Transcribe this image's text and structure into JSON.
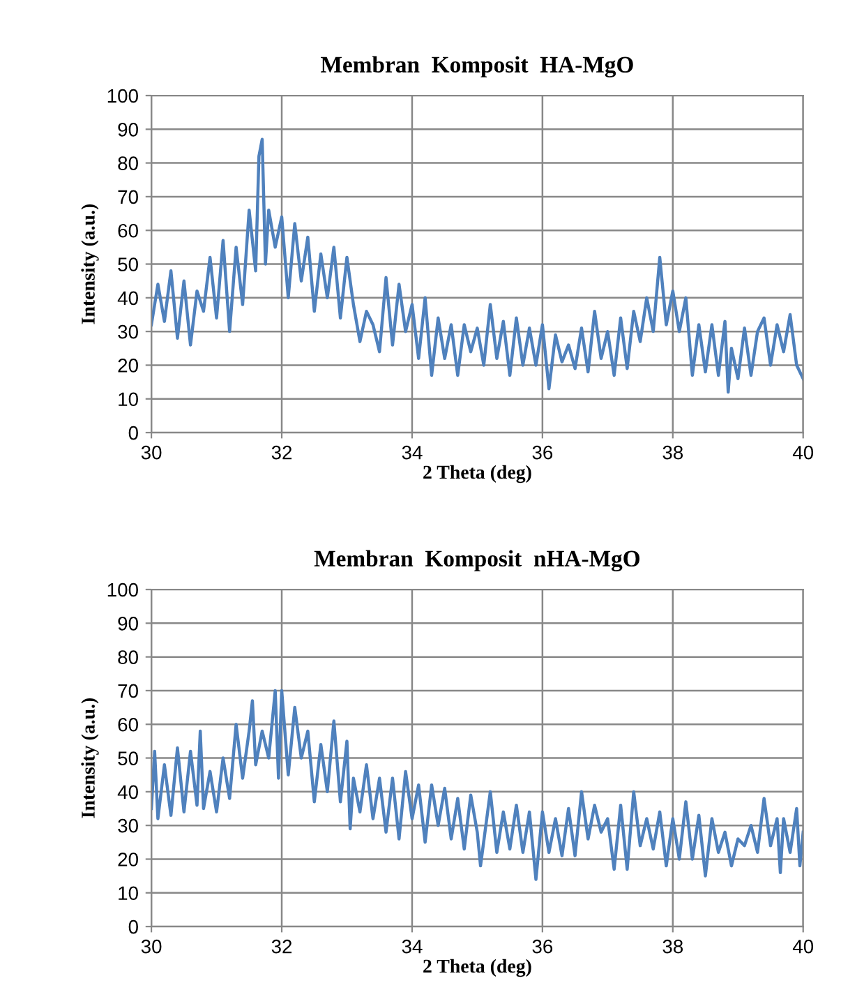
{
  "chart_data": [
    {
      "type": "line",
      "title": "Membran  Komposit  HA-MgO",
      "xlabel": "2 Theta (deg)",
      "ylabel": "Intensity (a.u.)",
      "xlim": [
        30,
        40
      ],
      "xticks": [
        30,
        32,
        34,
        36,
        38,
        40
      ],
      "ylim": [
        0,
        100
      ],
      "yticks": [
        0,
        10,
        20,
        30,
        40,
        50,
        60,
        70,
        80,
        90,
        100
      ],
      "grid": true,
      "marker": "none",
      "line_style": "solid",
      "series": [
        {
          "color": "#4f81bd",
          "x": [
            30.0,
            30.1,
            30.2,
            30.3,
            30.4,
            30.5,
            30.6,
            30.7,
            30.8,
            30.9,
            31.0,
            31.1,
            31.2,
            31.3,
            31.4,
            31.5,
            31.6,
            31.65,
            31.7,
            31.75,
            31.8,
            31.9,
            32.0,
            32.1,
            32.2,
            32.3,
            32.4,
            32.5,
            32.6,
            32.7,
            32.8,
            32.9,
            33.0,
            33.1,
            33.2,
            33.3,
            33.4,
            33.5,
            33.6,
            33.7,
            33.8,
            33.9,
            34.0,
            34.1,
            34.2,
            34.3,
            34.4,
            34.5,
            34.6,
            34.7,
            34.8,
            34.9,
            35.0,
            35.1,
            35.2,
            35.3,
            35.4,
            35.5,
            35.6,
            35.7,
            35.8,
            35.9,
            36.0,
            36.1,
            36.2,
            36.3,
            36.4,
            36.5,
            36.6,
            36.7,
            36.8,
            36.9,
            37.0,
            37.1,
            37.2,
            37.3,
            37.4,
            37.5,
            37.6,
            37.7,
            37.8,
            37.9,
            38.0,
            38.1,
            38.2,
            38.3,
            38.4,
            38.5,
            38.6,
            38.7,
            38.8,
            38.85,
            38.9,
            39.0,
            39.1,
            39.2,
            39.3,
            39.4,
            39.5,
            39.6,
            39.7,
            39.8,
            39.9,
            40.0
          ],
          "values": [
            32,
            44,
            33,
            48,
            28,
            45,
            26,
            42,
            36,
            52,
            34,
            57,
            30,
            55,
            38,
            66,
            48,
            82,
            87,
            50,
            66,
            55,
            64,
            40,
            62,
            45,
            58,
            36,
            53,
            40,
            55,
            34,
            52,
            38,
            27,
            36,
            32,
            24,
            46,
            26,
            44,
            30,
            38,
            22,
            40,
            17,
            34,
            22,
            32,
            17,
            32,
            24,
            31,
            20,
            38,
            22,
            33,
            17,
            34,
            20,
            31,
            20,
            32,
            13,
            29,
            21,
            26,
            19,
            31,
            18,
            36,
            22,
            30,
            17,
            34,
            19,
            36,
            27,
            40,
            30,
            52,
            32,
            42,
            30,
            40,
            17,
            32,
            18,
            32,
            17,
            33,
            12,
            25,
            16,
            31,
            17,
            30,
            34,
            20,
            32,
            24,
            35,
            20,
            16
          ]
        }
      ]
    },
    {
      "type": "line",
      "title": "Membran  Komposit  nHA-MgO",
      "xlabel": "2 Theta (deg)",
      "ylabel": "Intensity (a.u.)",
      "xlim": [
        30,
        40
      ],
      "xticks": [
        30,
        32,
        34,
        36,
        38,
        40
      ],
      "ylim": [
        0,
        100
      ],
      "yticks": [
        0,
        10,
        20,
        30,
        40,
        50,
        60,
        70,
        80,
        90,
        100
      ],
      "grid": true,
      "marker": "none",
      "line_style": "solid",
      "series": [
        {
          "color": "#4f81bd",
          "x": [
            30.0,
            30.05,
            30.1,
            30.2,
            30.3,
            30.4,
            30.5,
            30.6,
            30.7,
            30.75,
            30.8,
            30.9,
            31.0,
            31.1,
            31.2,
            31.3,
            31.4,
            31.5,
            31.55,
            31.6,
            31.7,
            31.8,
            31.9,
            31.95,
            32.0,
            32.1,
            32.2,
            32.3,
            32.4,
            32.5,
            32.6,
            32.7,
            32.8,
            32.9,
            33.0,
            33.05,
            33.1,
            33.2,
            33.3,
            33.4,
            33.5,
            33.6,
            33.7,
            33.8,
            33.9,
            34.0,
            34.1,
            34.2,
            34.3,
            34.4,
            34.5,
            34.6,
            34.7,
            34.8,
            34.9,
            35.0,
            35.05,
            35.2,
            35.3,
            35.4,
            35.5,
            35.6,
            35.7,
            35.8,
            35.9,
            36.0,
            36.1,
            36.2,
            36.3,
            36.4,
            36.5,
            36.6,
            36.7,
            36.8,
            36.9,
            37.0,
            37.1,
            37.2,
            37.3,
            37.4,
            37.5,
            37.6,
            37.7,
            37.8,
            37.9,
            38.0,
            38.1,
            38.2,
            38.3,
            38.4,
            38.5,
            38.6,
            38.7,
            38.8,
            38.9,
            39.0,
            39.1,
            39.2,
            39.3,
            39.4,
            39.5,
            39.6,
            39.65,
            39.7,
            39.8,
            39.9,
            39.95,
            40.0
          ],
          "values": [
            35,
            52,
            32,
            48,
            33,
            53,
            34,
            52,
            36,
            58,
            35,
            46,
            34,
            50,
            38,
            60,
            44,
            58,
            67,
            48,
            58,
            50,
            70,
            44,
            70,
            45,
            65,
            50,
            58,
            37,
            54,
            40,
            61,
            37,
            55,
            29,
            44,
            34,
            48,
            32,
            44,
            28,
            44,
            26,
            46,
            32,
            42,
            25,
            42,
            30,
            41,
            26,
            38,
            23,
            39,
            28,
            18,
            40,
            22,
            34,
            23,
            36,
            22,
            34,
            14,
            34,
            22,
            32,
            21,
            35,
            21,
            40,
            26,
            36,
            28,
            32,
            17,
            36,
            17,
            40,
            24,
            32,
            23,
            34,
            18,
            32,
            20,
            37,
            20,
            33,
            15,
            32,
            22,
            28,
            18,
            26,
            24,
            30,
            22,
            38,
            24,
            32,
            16,
            32,
            22,
            35,
            18,
            28
          ]
        }
      ]
    }
  ]
}
